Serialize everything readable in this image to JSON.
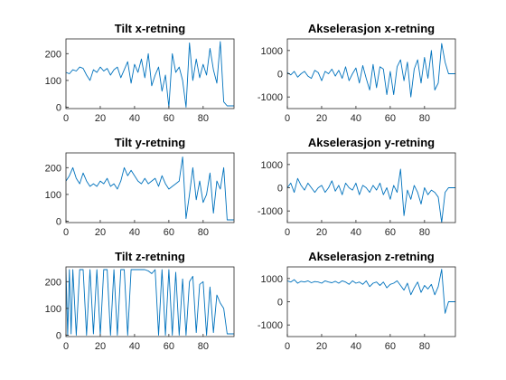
{
  "chart_data": [
    {
      "type": "line",
      "title": "Tilt x-retning",
      "xlim": [
        0,
        98
      ],
      "ylim": [
        -5,
        255
      ],
      "xticks": [
        0,
        20,
        40,
        60,
        80
      ],
      "yticks": [
        0,
        100,
        200
      ],
      "grid": false,
      "color": "#0072bd",
      "series": [
        {
          "x": [
            0,
            2,
            4,
            6,
            8,
            10,
            12,
            14,
            16,
            18,
            20,
            22,
            24,
            26,
            28,
            30,
            32,
            34,
            36,
            38,
            40,
            42,
            44,
            46,
            48,
            50,
            52,
            54,
            56,
            58,
            60,
            62,
            64,
            66,
            68,
            70,
            72,
            74,
            76,
            78,
            80,
            82,
            84,
            86,
            88,
            90,
            92,
            94,
            96,
            98
          ],
          "values": [
            130,
            125,
            140,
            135,
            150,
            145,
            120,
            100,
            140,
            130,
            150,
            135,
            145,
            120,
            140,
            150,
            110,
            140,
            170,
            90,
            160,
            130,
            180,
            110,
            200,
            80,
            120,
            150,
            60,
            120,
            0,
            200,
            130,
            150,
            100,
            0,
            240,
            100,
            180,
            110,
            160,
            120,
            220,
            140,
            90,
            245,
            20,
            5,
            5,
            5
          ]
        }
      ]
    },
    {
      "type": "line",
      "title": "Akselerasjon x-retning",
      "xlim": [
        0,
        98
      ],
      "ylim": [
        -1500,
        1500
      ],
      "xticks": [
        0,
        20,
        40,
        60,
        80
      ],
      "yticks": [
        -1000,
        0,
        1000
      ],
      "grid": false,
      "color": "#0072bd",
      "series": [
        {
          "x": [
            0,
            2,
            4,
            6,
            8,
            10,
            12,
            14,
            16,
            18,
            20,
            22,
            24,
            26,
            28,
            30,
            32,
            34,
            36,
            38,
            40,
            42,
            44,
            46,
            48,
            50,
            52,
            54,
            56,
            58,
            60,
            62,
            64,
            66,
            68,
            70,
            72,
            74,
            76,
            78,
            80,
            82,
            84,
            86,
            88,
            90,
            92,
            94,
            96,
            98
          ],
          "values": [
            50,
            -50,
            100,
            -150,
            0,
            100,
            -100,
            -200,
            150,
            50,
            -300,
            100,
            0,
            200,
            -100,
            150,
            -200,
            300,
            -300,
            0,
            250,
            -400,
            350,
            -200,
            -700,
            400,
            -600,
            300,
            200,
            -900,
            100,
            -900,
            300,
            600,
            -300,
            500,
            -1000,
            200,
            600,
            -400,
            700,
            -200,
            1000,
            -700,
            -400,
            1300,
            500,
            0,
            0,
            0
          ]
        }
      ]
    },
    {
      "type": "line",
      "title": "Tilt y-retning",
      "xlim": [
        0,
        98
      ],
      "ylim": [
        -5,
        255
      ],
      "xticks": [
        0,
        20,
        40,
        60,
        80
      ],
      "yticks": [
        0,
        100,
        200
      ],
      "grid": false,
      "color": "#0072bd",
      "series": [
        {
          "x": [
            0,
            2,
            4,
            6,
            8,
            10,
            12,
            14,
            16,
            18,
            20,
            22,
            24,
            26,
            28,
            30,
            32,
            34,
            36,
            38,
            40,
            42,
            44,
            46,
            48,
            50,
            52,
            54,
            56,
            58,
            60,
            62,
            64,
            66,
            68,
            70,
            72,
            74,
            76,
            78,
            80,
            82,
            84,
            86,
            88,
            90,
            92,
            94,
            96,
            98
          ],
          "values": [
            150,
            170,
            200,
            160,
            140,
            180,
            150,
            130,
            140,
            130,
            150,
            140,
            160,
            130,
            140,
            120,
            150,
            200,
            170,
            190,
            170,
            150,
            140,
            160,
            140,
            150,
            160,
            130,
            170,
            140,
            120,
            130,
            140,
            150,
            240,
            10,
            100,
            200,
            80,
            150,
            70,
            100,
            180,
            30,
            150,
            120,
            200,
            5,
            5,
            5
          ]
        }
      ]
    },
    {
      "type": "line",
      "title": "Akselerasjon y-retning",
      "xlim": [
        0,
        98
      ],
      "ylim": [
        -1500,
        1500
      ],
      "xticks": [
        0,
        20,
        40,
        60,
        80
      ],
      "yticks": [
        -1000,
        0,
        1000
      ],
      "grid": false,
      "color": "#0072bd",
      "series": [
        {
          "x": [
            0,
            2,
            4,
            6,
            8,
            10,
            12,
            14,
            16,
            18,
            20,
            22,
            24,
            26,
            28,
            30,
            32,
            34,
            36,
            38,
            40,
            42,
            44,
            46,
            48,
            50,
            52,
            54,
            56,
            58,
            60,
            62,
            64,
            66,
            68,
            70,
            72,
            74,
            76,
            78,
            80,
            82,
            84,
            86,
            88,
            90,
            92,
            94,
            96,
            98
          ],
          "values": [
            0,
            200,
            -200,
            400,
            100,
            -100,
            200,
            0,
            -200,
            0,
            100,
            -200,
            0,
            300,
            -150,
            100,
            -300,
            200,
            0,
            -100,
            200,
            -300,
            100,
            0,
            -200,
            100,
            -100,
            200,
            -300,
            0,
            -500,
            100,
            -200,
            800,
            -1200,
            -100,
            -500,
            100,
            -200,
            -700,
            0,
            -300,
            -100,
            -200,
            -400,
            -1500,
            -200,
            0,
            0,
            0
          ]
        }
      ]
    },
    {
      "type": "line",
      "title": "Tilt z-retning",
      "xlim": [
        0,
        98
      ],
      "ylim": [
        -5,
        255
      ],
      "xticks": [
        0,
        20,
        40,
        60,
        80
      ],
      "yticks": [
        0,
        100,
        200
      ],
      "grid": false,
      "color": "#0072bd",
      "series": [
        {
          "x": [
            0,
            1,
            2,
            3,
            4,
            6,
            8,
            10,
            12,
            14,
            16,
            18,
            20,
            22,
            24,
            26,
            28,
            30,
            32,
            34,
            36,
            38,
            40,
            42,
            44,
            46,
            48,
            50,
            52,
            54,
            56,
            58,
            60,
            62,
            64,
            66,
            68,
            70,
            72,
            74,
            76,
            78,
            80,
            82,
            84,
            86,
            88,
            90,
            92,
            94,
            96,
            98
          ],
          "values": [
            245,
            0,
            245,
            5,
            245,
            0,
            245,
            245,
            0,
            245,
            5,
            245,
            0,
            245,
            245,
            0,
            245,
            0,
            245,
            245,
            0,
            245,
            245,
            245,
            245,
            245,
            240,
            230,
            245,
            0,
            245,
            0,
            245,
            0,
            235,
            0,
            210,
            0,
            200,
            220,
            10,
            190,
            200,
            0,
            180,
            10,
            150,
            120,
            100,
            5,
            5,
            5
          ]
        }
      ]
    },
    {
      "type": "line",
      "title": "Akselerasjon z-retning",
      "xlim": [
        0,
        98
      ],
      "ylim": [
        -1500,
        1500
      ],
      "xticks": [
        0,
        20,
        40,
        60,
        80
      ],
      "yticks": [
        -1000,
        0,
        1000
      ],
      "grid": false,
      "color": "#0072bd",
      "series": [
        {
          "x": [
            0,
            2,
            4,
            6,
            8,
            10,
            12,
            14,
            16,
            18,
            20,
            22,
            24,
            26,
            28,
            30,
            32,
            34,
            36,
            38,
            40,
            42,
            44,
            46,
            48,
            50,
            52,
            54,
            56,
            58,
            60,
            62,
            64,
            66,
            68,
            70,
            72,
            74,
            76,
            78,
            80,
            82,
            84,
            86,
            88,
            90,
            92,
            94,
            96,
            98
          ],
          "values": [
            900,
            850,
            950,
            800,
            880,
            850,
            900,
            820,
            870,
            850,
            800,
            900,
            850,
            820,
            880,
            800,
            900,
            850,
            750,
            900,
            800,
            850,
            750,
            900,
            650,
            800,
            850,
            700,
            850,
            600,
            750,
            800,
            900,
            700,
            500,
            800,
            300,
            600,
            850,
            400,
            700,
            550,
            750,
            300,
            650,
            1400,
            -500,
            0,
            0,
            0
          ]
        }
      ]
    }
  ]
}
